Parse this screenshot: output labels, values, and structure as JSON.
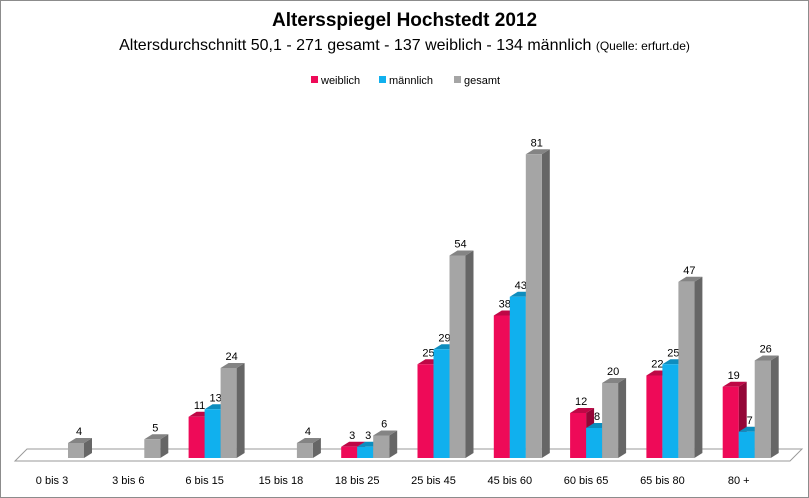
{
  "title": "Altersspiegel Hochstedt 2012",
  "subtitle": "Altersdurchschnitt 50,1 - 271 gesamt - 137 weiblich - 134 männlich",
  "source": "(Quelle: erfurt.de)",
  "colors": {
    "weiblich": "#ee0a58",
    "männlich": "#10b0ee",
    "gesamt": "#a5a5a5"
  },
  "chart_data": {
    "type": "bar",
    "title": "Altersspiegel Hochstedt 2012",
    "subtitle": "Altersdurchschnitt 50,1 - 271 gesamt - 137 weiblich - 134 männlich (Quelle: erfurt.de)",
    "xlabel": "",
    "ylabel": "",
    "legend_position": "top",
    "categories": [
      "0 bis 3",
      "3 bis 6",
      "6 bis 15",
      "15 bis 18",
      "18 bis 25",
      "25 bis 45",
      "45 bis 60",
      "60 bis 65",
      "65 bis 80",
      "80 +"
    ],
    "series": [
      {
        "name": "weiblich",
        "values": [
          null,
          null,
          11,
          null,
          3,
          25,
          38,
          12,
          22,
          19
        ]
      },
      {
        "name": "männlich",
        "values": [
          null,
          null,
          13,
          null,
          3,
          29,
          43,
          8,
          25,
          7
        ]
      },
      {
        "name": "gesamt",
        "values": [
          4,
          5,
          24,
          4,
          6,
          54,
          81,
          20,
          47,
          26
        ]
      }
    ],
    "ylim": [
      0,
      81
    ],
    "grid": false
  }
}
